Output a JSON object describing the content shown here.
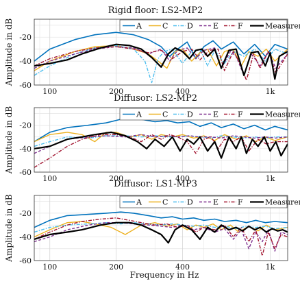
{
  "series_style": {
    "A": {
      "color": "#0072BD",
      "dash": "",
      "width": 1.6
    },
    "C": {
      "color": "#EDB120",
      "dash": "",
      "width": 1.4
    },
    "D": {
      "color": "#4DBEEE",
      "dash": "5 2 1.5 2",
      "width": 1.4
    },
    "E": {
      "color": "#7E2F8E",
      "dash": "4 2.5",
      "width": 1.4
    },
    "F": {
      "color": "#A2142F",
      "dash": "5 2 1.5 2",
      "width": 1.4
    },
    "Measurement": {
      "color": "#000000",
      "dash": "",
      "width": 2.2
    }
  },
  "x_label": "Frequency in Hz",
  "chart_data": [
    {
      "type": "line",
      "title": "Rigid floor: LS2-MP2",
      "ylabel": "Amplitude in dB",
      "xscale": "log",
      "xlim": [
        85,
        1200
      ],
      "ylim": [
        -60,
        -5
      ],
      "xticks": [
        100,
        200,
        400,
        "1k"
      ],
      "yticks": [
        -60,
        -40,
        -20
      ],
      "grid": true,
      "legend": [
        "A",
        "C",
        "D",
        "E",
        "F",
        "Measurement"
      ],
      "legend_position": "top-right",
      "series": [
        {
          "name": "A",
          "x": [
            85,
            100,
            130,
            160,
            200,
            240,
            280,
            320,
            350,
            380,
            420,
            460,
            500,
            550,
            600,
            680,
            760,
            850,
            950,
            1050,
            1200
          ],
          "y": [
            -40,
            -30,
            -22,
            -18,
            -16,
            -18,
            -22,
            -28,
            -36,
            -30,
            -24,
            -38,
            -28,
            -23,
            -30,
            -24,
            -34,
            -26,
            -36,
            -26,
            -30
          ]
        },
        {
          "name": "C",
          "x": [
            85,
            100,
            130,
            160,
            200,
            240,
            280,
            310,
            340,
            370,
            400,
            440,
            480,
            520,
            570,
            620,
            680,
            740,
            800,
            880,
            960,
            1050,
            1200
          ],
          "y": [
            -48,
            -40,
            -32,
            -28,
            -27,
            -30,
            -34,
            -40,
            -46,
            -32,
            -30,
            -40,
            -33,
            -30,
            -44,
            -32,
            -30,
            -44,
            -32,
            -36,
            -30,
            -40,
            -30
          ]
        },
        {
          "name": "D",
          "x": [
            85,
            100,
            130,
            160,
            200,
            240,
            270,
            290,
            310,
            330,
            360,
            400,
            440,
            480,
            520,
            560,
            620,
            680,
            760,
            850,
            950,
            1050,
            1200
          ],
          "y": [
            -52,
            -44,
            -34,
            -29,
            -27,
            -30,
            -40,
            -58,
            -38,
            -32,
            -30,
            -42,
            -32,
            -30,
            -44,
            -31,
            -42,
            -32,
            -36,
            -30,
            -40,
            -30,
            -34
          ]
        },
        {
          "name": "E",
          "x": [
            85,
            100,
            130,
            160,
            200,
            240,
            280,
            320,
            350,
            380,
            420,
            460,
            500,
            560,
            600,
            660,
            700,
            760,
            820,
            900,
            980,
            1060,
            1200
          ],
          "y": [
            -46,
            -40,
            -34,
            -30,
            -28,
            -29,
            -34,
            -30,
            -40,
            -31,
            -29,
            -38,
            -31,
            -29,
            -46,
            -32,
            -36,
            -52,
            -34,
            -44,
            -32,
            -46,
            -34
          ]
        },
        {
          "name": "F",
          "x": [
            85,
            100,
            130,
            160,
            200,
            240,
            280,
            320,
            360,
            400,
            440,
            480,
            530,
            580,
            620,
            680,
            720,
            780,
            840,
            900,
            980,
            1060,
            1200
          ],
          "y": [
            -44,
            -38,
            -32,
            -29,
            -28,
            -30,
            -33,
            -31,
            -38,
            -32,
            -30,
            -39,
            -31,
            -30,
            -48,
            -32,
            -40,
            -56,
            -34,
            -46,
            -32,
            -50,
            -34
          ]
        },
        {
          "name": "Measurement",
          "x": [
            85,
            100,
            120,
            140,
            170,
            200,
            230,
            260,
            290,
            320,
            345,
            370,
            400,
            430,
            460,
            490,
            520,
            560,
            600,
            650,
            700,
            760,
            820,
            880,
            950,
            1000,
            1050,
            1100,
            1200
          ],
          "y": [
            -44,
            -42,
            -39,
            -34,
            -29,
            -26,
            -27,
            -30,
            -37,
            -45,
            -34,
            -29,
            -32,
            -38,
            -31,
            -30,
            -36,
            -30,
            -46,
            -31,
            -30,
            -52,
            -33,
            -32,
            -44,
            -33,
            -55,
            -36,
            -32
          ]
        }
      ]
    },
    {
      "type": "line",
      "title": "Diffusor: LS2-MP2",
      "ylabel": "Amplitude in dB",
      "xscale": "log",
      "xlim": [
        85,
        1200
      ],
      "ylim": [
        -60,
        -5
      ],
      "xticks": [
        100,
        200,
        400,
        "1k"
      ],
      "yticks": [
        -60,
        -40,
        -20
      ],
      "grid": true,
      "legend": [
        "A",
        "C",
        "D",
        "E",
        "F",
        "Measurement"
      ],
      "legend_position": "top-right",
      "series": [
        {
          "name": "A",
          "x": [
            85,
            100,
            120,
            150,
            180,
            220,
            260,
            300,
            340,
            380,
            430,
            480,
            540,
            600,
            680,
            760,
            850,
            950,
            1050,
            1200
          ],
          "y": [
            -34,
            -26,
            -22,
            -20,
            -18,
            -14,
            -15,
            -17,
            -16,
            -18,
            -17,
            -21,
            -18,
            -22,
            -19,
            -23,
            -20,
            -24,
            -21,
            -24
          ]
        },
        {
          "name": "C",
          "x": [
            85,
            100,
            120,
            140,
            160,
            180,
            200,
            230,
            260,
            290,
            320,
            360,
            400,
            450,
            500,
            560,
            620,
            700,
            780,
            860,
            950,
            1050,
            1200
          ],
          "y": [
            -34,
            -28,
            -26,
            -28,
            -34,
            -26,
            -26,
            -30,
            -28,
            -32,
            -28,
            -30,
            -28,
            -31,
            -29,
            -33,
            -28,
            -32,
            -29,
            -34,
            -30,
            -33,
            -30
          ]
        },
        {
          "name": "D",
          "x": [
            85,
            100,
            120,
            150,
            180,
            220,
            260,
            300,
            340,
            380,
            430,
            480,
            540,
            600,
            680,
            760,
            850,
            950,
            1050,
            1200
          ],
          "y": [
            -38,
            -34,
            -30,
            -31,
            -29,
            -29,
            -30,
            -29,
            -30,
            -30,
            -29,
            -30,
            -31,
            -29,
            -30,
            -31,
            -30,
            -31,
            -30,
            -30
          ]
        },
        {
          "name": "E",
          "x": [
            85,
            100,
            120,
            150,
            180,
            220,
            260,
            300,
            340,
            380,
            430,
            480,
            540,
            600,
            680,
            760,
            850,
            950,
            1050,
            1200
          ],
          "y": [
            -44,
            -38,
            -32,
            -30,
            -29,
            -30,
            -28,
            -30,
            -29,
            -30,
            -29,
            -30,
            -30,
            -31,
            -29,
            -30,
            -31,
            -30,
            -31,
            -30
          ]
        },
        {
          "name": "F",
          "x": [
            85,
            100,
            120,
            140,
            170,
            200,
            230,
            260,
            290,
            320,
            350,
            380,
            420,
            460,
            500,
            540,
            580,
            620,
            680,
            740,
            800,
            880,
            960,
            1050,
            1200
          ],
          "y": [
            -56,
            -48,
            -38,
            -32,
            -28,
            -28,
            -30,
            -34,
            -28,
            -32,
            -28,
            -30,
            -34,
            -44,
            -32,
            -30,
            -40,
            -32,
            -34,
            -30,
            -42,
            -32,
            -36,
            -34,
            -34
          ]
        },
        {
          "name": "Measurement",
          "x": [
            85,
            100,
            120,
            140,
            160,
            190,
            220,
            250,
            275,
            300,
            330,
            360,
            390,
            420,
            450,
            480,
            520,
            560,
            600,
            650,
            700,
            740,
            780,
            830,
            880,
            940,
            1000,
            1060,
            1120,
            1200
          ],
          "y": [
            -40,
            -38,
            -32,
            -30,
            -28,
            -26,
            -29,
            -34,
            -40,
            -32,
            -38,
            -30,
            -42,
            -32,
            -36,
            -30,
            -42,
            -34,
            -48,
            -30,
            -40,
            -30,
            -44,
            -32,
            -38,
            -30,
            -42,
            -34,
            -46,
            -36
          ]
        }
      ]
    },
    {
      "type": "line",
      "title": "Diffusor: LS1-MP3",
      "ylabel": "Amplitude in dB",
      "xscale": "log",
      "xlim": [
        85,
        1200
      ],
      "ylim": [
        -60,
        -5
      ],
      "xticks": [
        100,
        200,
        400,
        "1k"
      ],
      "yticks": [
        -60,
        -40,
        -20
      ],
      "grid": true,
      "legend": [
        "A",
        "C",
        "D",
        "E",
        "F",
        "Measurement"
      ],
      "legend_position": "top-right",
      "series": [
        {
          "name": "A",
          "x": [
            85,
            100,
            120,
            150,
            180,
            210,
            240,
            280,
            320,
            360,
            400,
            450,
            500,
            560,
            620,
            700,
            780,
            860,
            950,
            1050,
            1200
          ],
          "y": [
            -32,
            -26,
            -22,
            -21,
            -20,
            -19,
            -20,
            -22,
            -24,
            -23,
            -25,
            -24,
            -26,
            -25,
            -27,
            -26,
            -28,
            -26,
            -28,
            -27,
            -28
          ]
        },
        {
          "name": "C",
          "x": [
            85,
            100,
            120,
            140,
            160,
            190,
            220,
            260,
            300,
            340,
            380,
            420,
            460,
            500,
            550,
            600,
            660,
            720,
            800,
            880,
            960,
            1050,
            1200
          ],
          "y": [
            -40,
            -34,
            -28,
            -27,
            -29,
            -32,
            -38,
            -30,
            -28,
            -31,
            -29,
            -34,
            -30,
            -32,
            -29,
            -34,
            -30,
            -36,
            -31,
            -35,
            -30,
            -34,
            -32
          ]
        },
        {
          "name": "D",
          "x": [
            85,
            100,
            120,
            150,
            180,
            210,
            240,
            280,
            320,
            360,
            400,
            450,
            500,
            560,
            620,
            700,
            780,
            860,
            950,
            1050,
            1200
          ],
          "y": [
            -36,
            -32,
            -30,
            -29,
            -28,
            -29,
            -28,
            -29,
            -30,
            -29,
            -30,
            -31,
            -30,
            -32,
            -31,
            -33,
            -31,
            -32,
            -31,
            -33,
            -32
          ]
        },
        {
          "name": "E",
          "x": [
            85,
            100,
            120,
            150,
            180,
            210,
            240,
            280,
            320,
            360,
            400,
            450,
            500,
            560,
            620,
            680,
            740,
            800,
            860,
            920,
            980,
            1050,
            1120,
            1200
          ],
          "y": [
            -44,
            -40,
            -34,
            -30,
            -28,
            -28,
            -29,
            -30,
            -31,
            -32,
            -30,
            -34,
            -32,
            -36,
            -33,
            -42,
            -34,
            -50,
            -36,
            -44,
            -34,
            -52,
            -36,
            -38
          ]
        },
        {
          "name": "F",
          "x": [
            85,
            100,
            120,
            140,
            170,
            200,
            230,
            260,
            300,
            340,
            380,
            420,
            460,
            500,
            560,
            620,
            680,
            740,
            800,
            860,
            920,
            980,
            1050,
            1120,
            1200
          ],
          "y": [
            -42,
            -36,
            -30,
            -27,
            -25,
            -24,
            -26,
            -28,
            -30,
            -29,
            -32,
            -30,
            -36,
            -32,
            -34,
            -30,
            -40,
            -32,
            -44,
            -34,
            -56,
            -36,
            -50,
            -38,
            -40
          ]
        },
        {
          "name": "Measurement",
          "x": [
            85,
            100,
            120,
            140,
            170,
            200,
            230,
            260,
            290,
            320,
            345,
            370,
            400,
            440,
            480,
            520,
            560,
            600,
            650,
            700,
            750,
            800,
            850,
            900,
            960,
            1020,
            1080,
            1140,
            1200
          ],
          "y": [
            -42,
            -38,
            -36,
            -34,
            -30,
            -28,
            -28,
            -30,
            -34,
            -38,
            -45,
            -34,
            -30,
            -34,
            -42,
            -32,
            -36,
            -30,
            -34,
            -32,
            -35,
            -31,
            -34,
            -32,
            -36,
            -33,
            -35,
            -34,
            -36
          ]
        }
      ]
    }
  ]
}
